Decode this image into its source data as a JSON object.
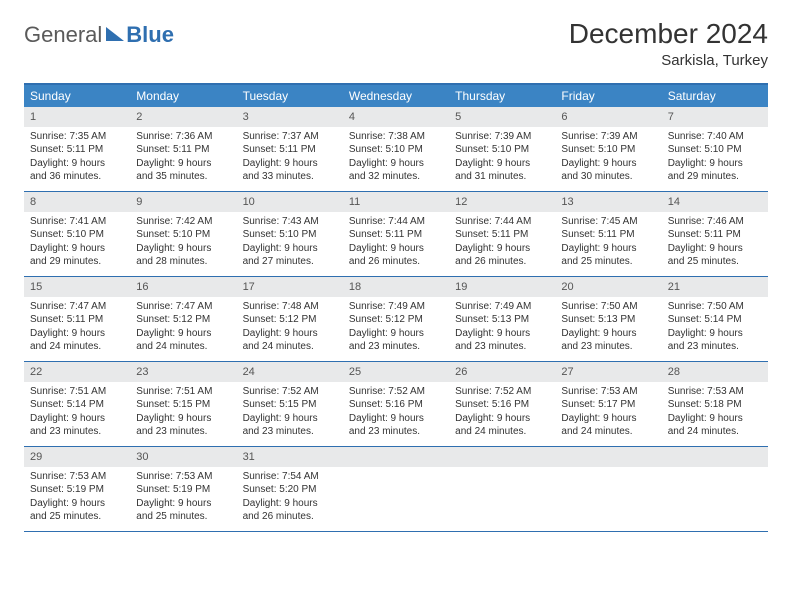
{
  "logo": {
    "part1": "General",
    "part2": "Blue"
  },
  "title": "December 2024",
  "location": "Sarkisla, Turkey",
  "colors": {
    "accent": "#2f6fb0",
    "header_bg": "#3b84c4",
    "daynum_bg": "#e8e9ea",
    "text": "#333333"
  },
  "weekdays": [
    "Sunday",
    "Monday",
    "Tuesday",
    "Wednesday",
    "Thursday",
    "Friday",
    "Saturday"
  ],
  "weeks": [
    [
      {
        "n": "1",
        "sr": "Sunrise: 7:35 AM",
        "ss": "Sunset: 5:11 PM",
        "d1": "Daylight: 9 hours",
        "d2": "and 36 minutes."
      },
      {
        "n": "2",
        "sr": "Sunrise: 7:36 AM",
        "ss": "Sunset: 5:11 PM",
        "d1": "Daylight: 9 hours",
        "d2": "and 35 minutes."
      },
      {
        "n": "3",
        "sr": "Sunrise: 7:37 AM",
        "ss": "Sunset: 5:11 PM",
        "d1": "Daylight: 9 hours",
        "d2": "and 33 minutes."
      },
      {
        "n": "4",
        "sr": "Sunrise: 7:38 AM",
        "ss": "Sunset: 5:10 PM",
        "d1": "Daylight: 9 hours",
        "d2": "and 32 minutes."
      },
      {
        "n": "5",
        "sr": "Sunrise: 7:39 AM",
        "ss": "Sunset: 5:10 PM",
        "d1": "Daylight: 9 hours",
        "d2": "and 31 minutes."
      },
      {
        "n": "6",
        "sr": "Sunrise: 7:39 AM",
        "ss": "Sunset: 5:10 PM",
        "d1": "Daylight: 9 hours",
        "d2": "and 30 minutes."
      },
      {
        "n": "7",
        "sr": "Sunrise: 7:40 AM",
        "ss": "Sunset: 5:10 PM",
        "d1": "Daylight: 9 hours",
        "d2": "and 29 minutes."
      }
    ],
    [
      {
        "n": "8",
        "sr": "Sunrise: 7:41 AM",
        "ss": "Sunset: 5:10 PM",
        "d1": "Daylight: 9 hours",
        "d2": "and 29 minutes."
      },
      {
        "n": "9",
        "sr": "Sunrise: 7:42 AM",
        "ss": "Sunset: 5:10 PM",
        "d1": "Daylight: 9 hours",
        "d2": "and 28 minutes."
      },
      {
        "n": "10",
        "sr": "Sunrise: 7:43 AM",
        "ss": "Sunset: 5:10 PM",
        "d1": "Daylight: 9 hours",
        "d2": "and 27 minutes."
      },
      {
        "n": "11",
        "sr": "Sunrise: 7:44 AM",
        "ss": "Sunset: 5:11 PM",
        "d1": "Daylight: 9 hours",
        "d2": "and 26 minutes."
      },
      {
        "n": "12",
        "sr": "Sunrise: 7:44 AM",
        "ss": "Sunset: 5:11 PM",
        "d1": "Daylight: 9 hours",
        "d2": "and 26 minutes."
      },
      {
        "n": "13",
        "sr": "Sunrise: 7:45 AM",
        "ss": "Sunset: 5:11 PM",
        "d1": "Daylight: 9 hours",
        "d2": "and 25 minutes."
      },
      {
        "n": "14",
        "sr": "Sunrise: 7:46 AM",
        "ss": "Sunset: 5:11 PM",
        "d1": "Daylight: 9 hours",
        "d2": "and 25 minutes."
      }
    ],
    [
      {
        "n": "15",
        "sr": "Sunrise: 7:47 AM",
        "ss": "Sunset: 5:11 PM",
        "d1": "Daylight: 9 hours",
        "d2": "and 24 minutes."
      },
      {
        "n": "16",
        "sr": "Sunrise: 7:47 AM",
        "ss": "Sunset: 5:12 PM",
        "d1": "Daylight: 9 hours",
        "d2": "and 24 minutes."
      },
      {
        "n": "17",
        "sr": "Sunrise: 7:48 AM",
        "ss": "Sunset: 5:12 PM",
        "d1": "Daylight: 9 hours",
        "d2": "and 24 minutes."
      },
      {
        "n": "18",
        "sr": "Sunrise: 7:49 AM",
        "ss": "Sunset: 5:12 PM",
        "d1": "Daylight: 9 hours",
        "d2": "and 23 minutes."
      },
      {
        "n": "19",
        "sr": "Sunrise: 7:49 AM",
        "ss": "Sunset: 5:13 PM",
        "d1": "Daylight: 9 hours",
        "d2": "and 23 minutes."
      },
      {
        "n": "20",
        "sr": "Sunrise: 7:50 AM",
        "ss": "Sunset: 5:13 PM",
        "d1": "Daylight: 9 hours",
        "d2": "and 23 minutes."
      },
      {
        "n": "21",
        "sr": "Sunrise: 7:50 AM",
        "ss": "Sunset: 5:14 PM",
        "d1": "Daylight: 9 hours",
        "d2": "and 23 minutes."
      }
    ],
    [
      {
        "n": "22",
        "sr": "Sunrise: 7:51 AM",
        "ss": "Sunset: 5:14 PM",
        "d1": "Daylight: 9 hours",
        "d2": "and 23 minutes."
      },
      {
        "n": "23",
        "sr": "Sunrise: 7:51 AM",
        "ss": "Sunset: 5:15 PM",
        "d1": "Daylight: 9 hours",
        "d2": "and 23 minutes."
      },
      {
        "n": "24",
        "sr": "Sunrise: 7:52 AM",
        "ss": "Sunset: 5:15 PM",
        "d1": "Daylight: 9 hours",
        "d2": "and 23 minutes."
      },
      {
        "n": "25",
        "sr": "Sunrise: 7:52 AM",
        "ss": "Sunset: 5:16 PM",
        "d1": "Daylight: 9 hours",
        "d2": "and 23 minutes."
      },
      {
        "n": "26",
        "sr": "Sunrise: 7:52 AM",
        "ss": "Sunset: 5:16 PM",
        "d1": "Daylight: 9 hours",
        "d2": "and 24 minutes."
      },
      {
        "n": "27",
        "sr": "Sunrise: 7:53 AM",
        "ss": "Sunset: 5:17 PM",
        "d1": "Daylight: 9 hours",
        "d2": "and 24 minutes."
      },
      {
        "n": "28",
        "sr": "Sunrise: 7:53 AM",
        "ss": "Sunset: 5:18 PM",
        "d1": "Daylight: 9 hours",
        "d2": "and 24 minutes."
      }
    ],
    [
      {
        "n": "29",
        "sr": "Sunrise: 7:53 AM",
        "ss": "Sunset: 5:19 PM",
        "d1": "Daylight: 9 hours",
        "d2": "and 25 minutes."
      },
      {
        "n": "30",
        "sr": "Sunrise: 7:53 AM",
        "ss": "Sunset: 5:19 PM",
        "d1": "Daylight: 9 hours",
        "d2": "and 25 minutes."
      },
      {
        "n": "31",
        "sr": "Sunrise: 7:54 AM",
        "ss": "Sunset: 5:20 PM",
        "d1": "Daylight: 9 hours",
        "d2": "and 26 minutes."
      },
      {
        "empty": true
      },
      {
        "empty": true
      },
      {
        "empty": true
      },
      {
        "empty": true
      }
    ]
  ]
}
